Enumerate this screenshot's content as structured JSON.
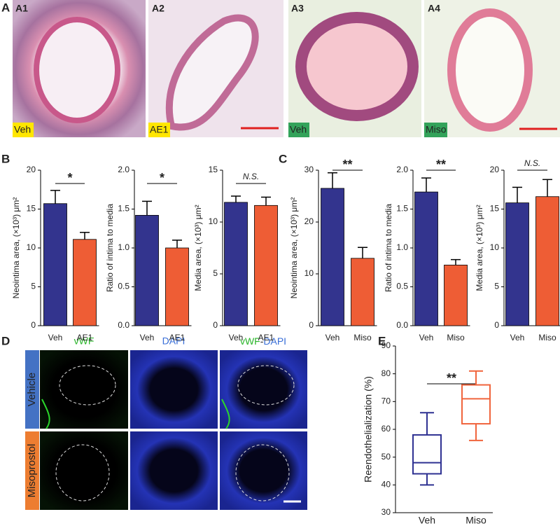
{
  "panel_labels": [
    "A",
    "B",
    "C",
    "D",
    "E"
  ],
  "panel_a": {
    "images": [
      {
        "label": "A1",
        "group": "Veh"
      },
      {
        "label": "A2",
        "group": "AE1"
      },
      {
        "label": "A3",
        "group": "Veh"
      },
      {
        "label": "A4",
        "group": "Miso"
      }
    ]
  },
  "panel_d": {
    "channels": [
      "vWF",
      "DAPI"
    ],
    "merged": [
      "vWF",
      "-",
      "DAPI"
    ],
    "rows": [
      "Vehicle",
      "Misoprostol"
    ]
  },
  "chart_data": [
    {
      "type": "bar",
      "ylabel": "Neointima area, (×10³) μm²",
      "categories": [
        "Veh",
        "AE1"
      ],
      "values": [
        15.7,
        11.1
      ],
      "errors": [
        1.7,
        0.9
      ],
      "colors": [
        "#33348e",
        "#ee5d35"
      ],
      "ylim": [
        0,
        20
      ],
      "yticks": [
        0,
        5,
        10,
        15,
        20
      ],
      "annotation": "*"
    },
    {
      "type": "bar",
      "ylabel": "Ratio of intima to media",
      "categories": [
        "Veh",
        "AE1"
      ],
      "values": [
        1.42,
        1.0
      ],
      "errors": [
        0.18,
        0.1
      ],
      "colors": [
        "#33348e",
        "#ee5d35"
      ],
      "ylim": [
        0,
        2
      ],
      "yticks": [
        {
          "value": 0,
          "label": "0.0"
        },
        {
          "value": 0.5,
          "label": "0.5"
        },
        {
          "value": 1,
          "label": "1.0"
        },
        {
          "value": 1.5,
          "label": "1.5"
        },
        {
          "value": 2,
          "label": "2.0"
        }
      ],
      "annotation": "*"
    },
    {
      "type": "bar",
      "ylabel": "Media area, (×10³) μm²",
      "categories": [
        "Veh",
        "AE1"
      ],
      "values": [
        11.9,
        11.6
      ],
      "errors": [
        0.6,
        0.8
      ],
      "colors": [
        "#33348e",
        "#ee5d35"
      ],
      "ylim": [
        0,
        15
      ],
      "yticks": [
        0,
        5,
        10,
        15
      ],
      "annotation": "N.S."
    },
    {
      "type": "bar",
      "ylabel": "Neointima area, (×10³) μm²",
      "categories": [
        "Veh",
        "Miso"
      ],
      "values": [
        26.5,
        13
      ],
      "errors": [
        3,
        2.1
      ],
      "colors": [
        "#33348e",
        "#ee5d35"
      ],
      "ylim": [
        0,
        30
      ],
      "yticks": [
        0,
        10,
        20,
        30
      ],
      "annotation": "**"
    },
    {
      "type": "bar",
      "ylabel": "Ratio of intima to media",
      "categories": [
        "Veh",
        "Miso"
      ],
      "values": [
        1.72,
        0.78
      ],
      "errors": [
        0.18,
        0.07
      ],
      "colors": [
        "#33348e",
        "#ee5d35"
      ],
      "ylim": [
        0,
        2
      ],
      "yticks": [
        {
          "value": 0,
          "label": "0.0"
        },
        {
          "value": 0.5,
          "label": "0.5"
        },
        {
          "value": 1,
          "label": "1.0"
        },
        {
          "value": 1.5,
          "label": "1.5"
        },
        {
          "value": 2,
          "label": "2.0"
        }
      ],
      "annotation": "**"
    },
    {
      "type": "bar",
      "ylabel": "Media area, (×10³) μm²",
      "categories": [
        "Veh",
        "Miso"
      ],
      "values": [
        15.8,
        16.6
      ],
      "errors": [
        2,
        2.2
      ],
      "colors": [
        "#33348e",
        "#ee5d35"
      ],
      "ylim": [
        0,
        20
      ],
      "yticks": [
        0,
        5,
        10,
        15,
        20
      ],
      "annotation": "N.S."
    },
    {
      "type": "box",
      "ylabel": "Reendothelialization (%)",
      "categories": [
        "Veh",
        "Miso"
      ],
      "whisker_low": [
        40,
        56
      ],
      "q1": [
        44,
        62
      ],
      "median": [
        48,
        71
      ],
      "q3": [
        58,
        76
      ],
      "whisker_high": [
        66,
        81
      ],
      "colors": [
        "#2e3192",
        "#f0643c"
      ],
      "ylim": [
        30,
        90
      ],
      "yticks": [
        30,
        40,
        50,
        60,
        70,
        80,
        90
      ],
      "annotation": "**"
    }
  ]
}
